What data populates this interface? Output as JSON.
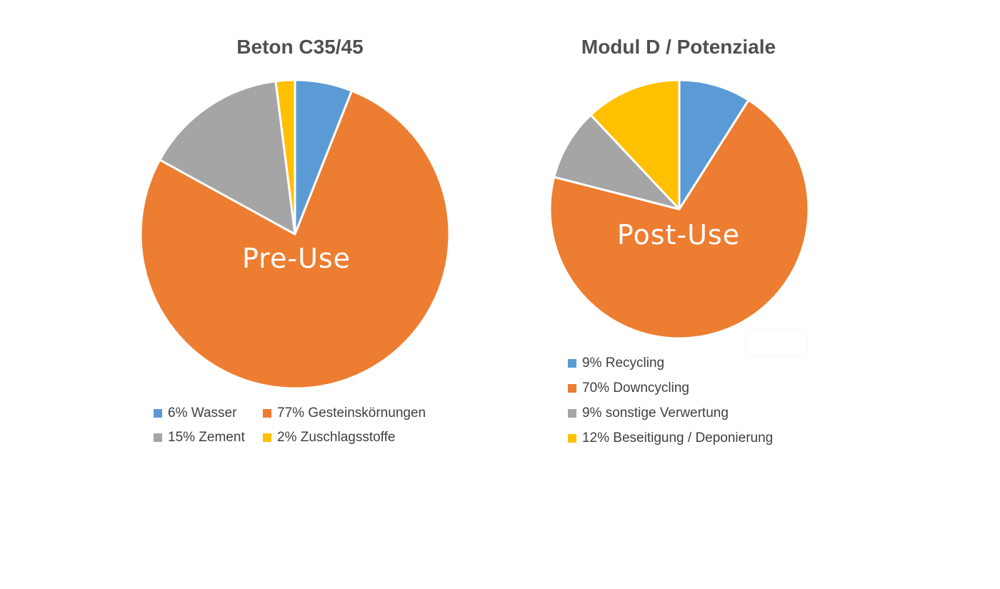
{
  "colors": {
    "blue": "#5b9bd5",
    "orange": "#ed7d31",
    "gray": "#a5a5a5",
    "yellow": "#ffc000"
  },
  "chart_data": [
    {
      "type": "pie",
      "title": "Beton C35/45",
      "center_label": "Pre-Use",
      "start_angle_deg": 0,
      "direction": "clockwise",
      "legend_position": "bottom",
      "slices": [
        {
          "label": "6% Wasser",
          "value": 6,
          "color": "#5b9bd5"
        },
        {
          "label": "77% Gesteinskörnungen",
          "value": 77,
          "color": "#ed7d31"
        },
        {
          "label": "15% Zement",
          "value": 15,
          "color": "#a5a5a5"
        },
        {
          "label": "2% Zuschlagsstoffe",
          "value": 2,
          "color": "#ffc000"
        }
      ]
    },
    {
      "type": "pie",
      "title": "Modul D / Potenziale",
      "center_label": "Post-Use",
      "start_angle_deg": 0,
      "direction": "clockwise",
      "legend_position": "bottom",
      "slices": [
        {
          "label": "9% Recycling",
          "value": 9,
          "color": "#5b9bd5"
        },
        {
          "label": "70% Downcycling",
          "value": 70,
          "color": "#ed7d31"
        },
        {
          "label": "9% sonstige Verwertung",
          "value": 9,
          "color": "#a5a5a5"
        },
        {
          "label": "12% Beseitigung / Deponierung",
          "value": 12,
          "color": "#ffc000"
        }
      ]
    }
  ]
}
